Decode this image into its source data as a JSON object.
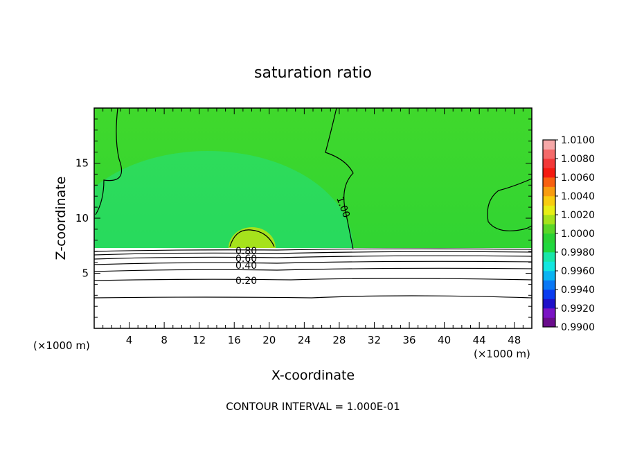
{
  "chart_data": {
    "type": "heatmap",
    "title": "saturation ratio",
    "xlabel": "X-coordinate",
    "ylabel": "Z-coordinate",
    "x_unit_left": "(×1000 m)",
    "x_unit_right": "(×1000 m)",
    "xlim": [
      0,
      50
    ],
    "ylim": [
      0,
      20
    ],
    "xticks": [
      4,
      8,
      12,
      16,
      20,
      24,
      28,
      32,
      36,
      40,
      44,
      48
    ],
    "yticks": [
      5,
      10,
      15
    ],
    "colorbar": {
      "ticks": [
        "0.9900",
        "0.9920",
        "0.9940",
        "0.9960",
        "0.9980",
        "1.0000",
        "1.0020",
        "1.0040",
        "1.0060",
        "1.0080",
        "1.0100"
      ],
      "min": 0.99,
      "max": 1.01,
      "colors": [
        "#6a0d8c",
        "#7a14c4",
        "#1e10c8",
        "#0a3cf0",
        "#0a78f5",
        "#0ab4f2",
        "#12e6e0",
        "#18e6a8",
        "#20d83e",
        "#2ad234",
        "#5ad628",
        "#a6e21c",
        "#e8ee16",
        "#f8cc10",
        "#f89c10",
        "#f86010",
        "#f41a10",
        "#f23838",
        "#f46a6a",
        "#f6a8a8"
      ]
    },
    "contour_labels": [
      "0.80",
      "0.60",
      "0.40",
      "0.20",
      "1.00"
    ],
    "footer": "CONTOUR INTERVAL = 1.000E-01"
  }
}
